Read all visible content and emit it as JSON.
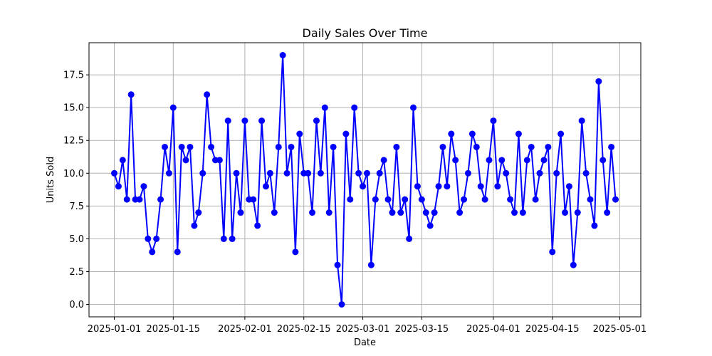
{
  "chart_data": {
    "type": "line",
    "title": "Daily Sales Over Time",
    "xlabel": "Date",
    "ylabel": "Units Sold",
    "x_start": "2025-01-01",
    "x_end": "2025-04-30",
    "xlim": [
      "2024-12-26",
      "2025-05-06"
    ],
    "ylim": [
      -0.95,
      19.95
    ],
    "grid": true,
    "marker": "circle",
    "x_ticks": [
      "2025-01-01",
      "2025-01-15",
      "2025-02-01",
      "2025-02-15",
      "2025-03-01",
      "2025-03-15",
      "2025-04-01",
      "2025-04-15",
      "2025-05-01"
    ],
    "y_ticks": [
      "0.0",
      "2.5",
      "5.0",
      "7.5",
      "10.0",
      "12.5",
      "15.0",
      "17.5"
    ],
    "colors": {
      "series": "#0000ff",
      "grid": "#b0b0b0"
    },
    "series": [
      {
        "values": [
          10,
          9,
          11,
          8,
          16,
          8,
          8,
          9,
          5,
          4,
          5,
          8,
          12,
          10,
          15,
          4,
          12,
          11,
          12,
          6,
          7,
          10,
          16,
          12,
          11,
          11,
          5,
          14,
          5,
          10,
          7,
          14,
          8,
          8,
          6,
          14,
          9,
          10,
          7,
          12,
          19,
          10,
          12,
          4,
          13,
          10,
          10,
          7,
          14,
          10,
          15,
          7,
          12,
          3,
          0,
          13,
          8,
          15,
          10,
          9,
          10,
          3,
          8,
          10,
          11,
          8,
          7,
          12,
          7,
          8,
          5,
          15,
          9,
          8,
          7,
          6,
          7,
          9,
          12,
          9,
          13,
          11,
          7,
          8,
          10,
          13,
          12,
          9,
          8,
          11,
          14,
          9,
          11,
          10,
          8,
          7,
          13,
          7,
          11,
          12,
          8,
          10,
          11,
          12,
          4,
          10,
          13,
          7,
          9,
          3,
          7,
          14,
          10,
          8,
          6,
          17,
          11,
          7,
          12,
          8
        ]
      }
    ]
  }
}
